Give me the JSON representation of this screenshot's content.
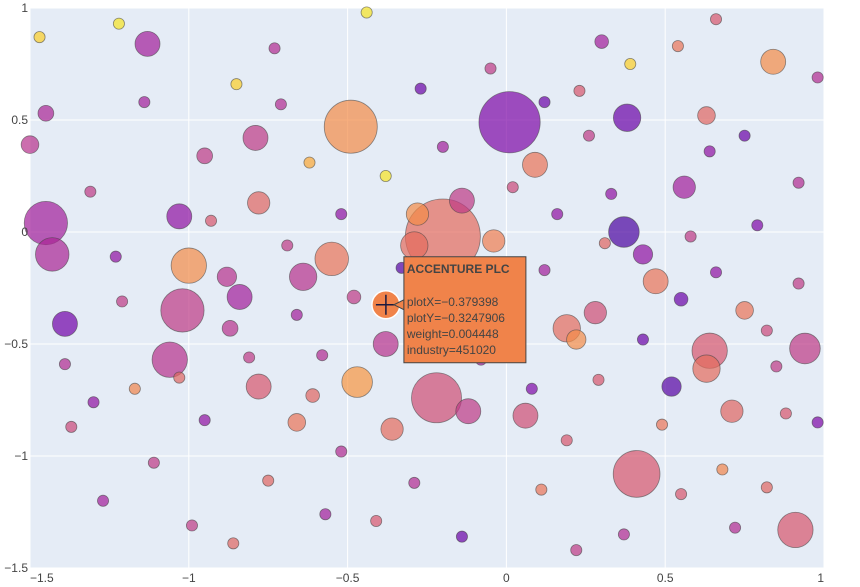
{
  "chart_data": {
    "type": "scatter",
    "title": "",
    "xlabel": "",
    "ylabel": "",
    "xlim": [
      -1.5,
      1.0
    ],
    "ylim": [
      -1.5,
      1.0
    ],
    "x_ticks": [
      -1.5,
      -1,
      -0.5,
      0,
      0.5,
      1
    ],
    "x_tick_labels": [
      "−1.5",
      "−1",
      "−0.5",
      "0",
      "0.5",
      "1"
    ],
    "y_ticks": [
      -1.5,
      -1,
      -0.5,
      0,
      0.5,
      1
    ],
    "y_tick_labels": [
      "−1.5",
      "−1",
      "−0.5",
      "0",
      "0.5",
      "1"
    ],
    "grid": true,
    "background_color": "#e5ecf6",
    "grid_color": "#ffffff",
    "color_scale": [
      "#0d0887",
      "#46039f",
      "#7201a8",
      "#9c179e",
      "#bd3786",
      "#d8576b",
      "#ed7953",
      "#fb9f3a",
      "#fdca26",
      "#f0f921"
    ],
    "marker_opacity": 0.7,
    "marker_outline_color": "#444444",
    "points": [
      {
        "x": 0.01,
        "y": 0.49,
        "weight": 0.06,
        "c": 0.25
      },
      {
        "x": -0.49,
        "y": 0.47,
        "weight": 0.045,
        "c": 0.72
      },
      {
        "x": -0.2,
        "y": -0.02,
        "weight": 0.09,
        "c": 0.62
      },
      {
        "x": -0.22,
        "y": -0.74,
        "weight": 0.04,
        "c": 0.52
      },
      {
        "x": 0.41,
        "y": -1.08,
        "weight": 0.035,
        "c": 0.55
      },
      {
        "x": -1.02,
        "y": -0.35,
        "weight": 0.03,
        "c": 0.45
      },
      {
        "x": -1.45,
        "y": 0.04,
        "weight": 0.03,
        "c": 0.35
      },
      {
        "x": 0.91,
        "y": -1.33,
        "weight": 0.02,
        "c": 0.55
      },
      {
        "x": 0.94,
        "y": -0.52,
        "weight": 0.015,
        "c": 0.45
      },
      {
        "x": 0.64,
        "y": -0.53,
        "weight": 0.02,
        "c": 0.55
      },
      {
        "x": -0.47,
        "y": -0.67,
        "weight": 0.015,
        "c": 0.75
      },
      {
        "x": -1.0,
        "y": -0.15,
        "weight": 0.02,
        "c": 0.72
      },
      {
        "x": -1.06,
        "y": -0.57,
        "weight": 0.02,
        "c": 0.42
      },
      {
        "x": 0.37,
        "y": 0.0,
        "weight": 0.015,
        "c": 0.12
      },
      {
        "x": 0.38,
        "y": 0.51,
        "weight": 0.012,
        "c": 0.2
      },
      {
        "x": -1.43,
        "y": -0.1,
        "weight": 0.018,
        "c": 0.38
      },
      {
        "x": -0.55,
        "y": -0.12,
        "weight": 0.018,
        "c": 0.65
      },
      {
        "x": 0.63,
        "y": -0.61,
        "weight": 0.012,
        "c": 0.62
      },
      {
        "x": 0.84,
        "y": 0.76,
        "weight": 0.01,
        "c": 0.72
      },
      {
        "x": -1.13,
        "y": 0.84,
        "weight": 0.01,
        "c": 0.35
      },
      {
        "x": -1.39,
        "y": -0.41,
        "weight": 0.01,
        "c": 0.22
      },
      {
        "x": -0.79,
        "y": 0.42,
        "weight": 0.01,
        "c": 0.45
      },
      {
        "x": -0.78,
        "y": -0.69,
        "weight": 0.01,
        "c": 0.55
      },
      {
        "x": -0.84,
        "y": -0.29,
        "weight": 0.01,
        "c": 0.35
      },
      {
        "x": 0.47,
        "y": -0.22,
        "weight": 0.01,
        "c": 0.65
      },
      {
        "x": 0.71,
        "y": -0.8,
        "weight": 0.008,
        "c": 0.6
      },
      {
        "x": 0.19,
        "y": -0.43,
        "weight": 0.012,
        "c": 0.62
      },
      {
        "x": -0.38,
        "y": -0.5,
        "weight": 0.01,
        "c": 0.42
      },
      {
        "x": -0.36,
        "y": -0.88,
        "weight": 0.008,
        "c": 0.62
      },
      {
        "x": 0.06,
        "y": -0.82,
        "weight": 0.01,
        "c": 0.52
      },
      {
        "x": -0.12,
        "y": -0.8,
        "weight": 0.01,
        "c": 0.45
      },
      {
        "x": -0.29,
        "y": -0.06,
        "weight": 0.012,
        "c": 0.62
      },
      {
        "x": -0.04,
        "y": -0.04,
        "weight": 0.008,
        "c": 0.68
      },
      {
        "x": -0.64,
        "y": -0.2,
        "weight": 0.012,
        "c": 0.42
      },
      {
        "x": -0.14,
        "y": 0.14,
        "weight": 0.01,
        "c": 0.45
      },
      {
        "x": -1.03,
        "y": 0.07,
        "weight": 0.01,
        "c": 0.3
      },
      {
        "x": 0.09,
        "y": 0.3,
        "weight": 0.01,
        "c": 0.65
      },
      {
        "x": -0.78,
        "y": 0.13,
        "weight": 0.008,
        "c": 0.6
      },
      {
        "x": 0.28,
        "y": -0.36,
        "weight": 0.008,
        "c": 0.52
      },
      {
        "x": 0.56,
        "y": 0.2,
        "weight": 0.008,
        "c": 0.35
      },
      {
        "x": -0.28,
        "y": 0.08,
        "weight": 0.008,
        "c": 0.72
      },
      {
        "x": 0.52,
        "y": -0.69,
        "weight": 0.006,
        "c": 0.15
      },
      {
        "x": -0.88,
        "y": -0.2,
        "weight": 0.006,
        "c": 0.42
      },
      {
        "x": 0.22,
        "y": -0.48,
        "weight": 0.006,
        "c": 0.72
      },
      {
        "x": 0.43,
        "y": -0.1,
        "weight": 0.006,
        "c": 0.3
      },
      {
        "x": 0.75,
        "y": -0.35,
        "weight": 0.005,
        "c": 0.65
      },
      {
        "x": 0.63,
        "y": 0.52,
        "weight": 0.005,
        "c": 0.6
      },
      {
        "x": -0.66,
        "y": -0.85,
        "weight": 0.005,
        "c": 0.65
      },
      {
        "x": -1.5,
        "y": 0.39,
        "weight": 0.005,
        "c": 0.42
      },
      {
        "x": -1.45,
        "y": 0.53,
        "weight": 0.004,
        "c": 0.38
      },
      {
        "x": -0.95,
        "y": 0.34,
        "weight": 0.004,
        "c": 0.45
      },
      {
        "x": -0.87,
        "y": -0.43,
        "weight": 0.004,
        "c": 0.42
      },
      {
        "x": 0.3,
        "y": 0.85,
        "weight": 0.003,
        "c": 0.35
      },
      {
        "x": 0.55,
        "y": -0.3,
        "weight": 0.003,
        "c": 0.2
      },
      {
        "x": -0.61,
        "y": -0.73,
        "weight": 0.003,
        "c": 0.6
      },
      {
        "x": -0.48,
        "y": -0.29,
        "weight": 0.003,
        "c": 0.45
      },
      {
        "x": 0.88,
        "y": -0.81,
        "weight": 0.002,
        "c": 0.55
      },
      {
        "x": -1.39,
        "y": -0.59,
        "weight": 0.002,
        "c": 0.4
      },
      {
        "x": -1.21,
        "y": -0.31,
        "weight": 0.002,
        "c": 0.45
      },
      {
        "x": -0.52,
        "y": -0.98,
        "weight": 0.002,
        "c": 0.4
      },
      {
        "x": 0.08,
        "y": -0.7,
        "weight": 0.002,
        "c": 0.25
      },
      {
        "x": -1.22,
        "y": 0.93,
        "weight": 0.002,
        "c": 0.95
      },
      {
        "x": -1.47,
        "y": 0.87,
        "weight": 0.002,
        "c": 0.9
      },
      {
        "x": -0.73,
        "y": 0.82,
        "weight": 0.002,
        "c": 0.4
      },
      {
        "x": -0.44,
        "y": 0.98,
        "weight": 0.002,
        "c": 0.95
      },
      {
        "x": 0.54,
        "y": 0.83,
        "weight": 0.002,
        "c": 0.65
      },
      {
        "x": 0.23,
        "y": 0.63,
        "weight": 0.002,
        "c": 0.55
      },
      {
        "x": 0.12,
        "y": 0.58,
        "weight": 0.002,
        "c": 0.2
      },
      {
        "x": -0.05,
        "y": 0.73,
        "weight": 0.002,
        "c": 0.45
      },
      {
        "x": 0.39,
        "y": 0.75,
        "weight": 0.002,
        "c": 0.9
      },
      {
        "x": 0.64,
        "y": 0.36,
        "weight": 0.002,
        "c": 0.3
      },
      {
        "x": 0.92,
        "y": 0.22,
        "weight": 0.002,
        "c": 0.4
      },
      {
        "x": 0.79,
        "y": 0.03,
        "weight": 0.002,
        "c": 0.25
      },
      {
        "x": 0.92,
        "y": -0.23,
        "weight": 0.002,
        "c": 0.45
      },
      {
        "x": 0.82,
        "y": -1.14,
        "weight": 0.002,
        "c": 0.6
      },
      {
        "x": 0.68,
        "y": -1.06,
        "weight": 0.002,
        "c": 0.7
      },
      {
        "x": 0.37,
        "y": -1.35,
        "weight": 0.002,
        "c": 0.4
      },
      {
        "x": 0.11,
        "y": -1.15,
        "weight": 0.002,
        "c": 0.65
      },
      {
        "x": -0.14,
        "y": -1.36,
        "weight": 0.002,
        "c": 0.2
      },
      {
        "x": -0.41,
        "y": -1.29,
        "weight": 0.002,
        "c": 0.55
      },
      {
        "x": -0.75,
        "y": -1.11,
        "weight": 0.002,
        "c": 0.6
      },
      {
        "x": -0.99,
        "y": -1.31,
        "weight": 0.002,
        "c": 0.45
      },
      {
        "x": -1.27,
        "y": -1.2,
        "weight": 0.002,
        "c": 0.35
      },
      {
        "x": -1.37,
        "y": -0.87,
        "weight": 0.002,
        "c": 0.5
      },
      {
        "x": -1.17,
        "y": -0.7,
        "weight": 0.002,
        "c": 0.7
      },
      {
        "x": -0.95,
        "y": -0.84,
        "weight": 0.002,
        "c": 0.3
      },
      {
        "x": -0.66,
        "y": -0.37,
        "weight": 0.002,
        "c": 0.35
      },
      {
        "x": -0.33,
        "y": -0.16,
        "weight": 0.002,
        "c": 0.15
      },
      {
        "x": -0.08,
        "y": -0.57,
        "weight": 0.002,
        "c": 0.35
      },
      {
        "x": 0.19,
        "y": -0.93,
        "weight": 0.002,
        "c": 0.55
      },
      {
        "x": 0.43,
        "y": -0.48,
        "weight": 0.002,
        "c": 0.2
      },
      {
        "x": 0.58,
        "y": -0.02,
        "weight": 0.002,
        "c": 0.45
      },
      {
        "x": 0.16,
        "y": 0.08,
        "weight": 0.002,
        "c": 0.3
      },
      {
        "x": -0.38,
        "y": 0.25,
        "weight": 0.002,
        "c": 0.95
      },
      {
        "x": -0.71,
        "y": 0.57,
        "weight": 0.002,
        "c": 0.4
      },
      {
        "x": -0.85,
        "y": 0.66,
        "weight": 0.002,
        "c": 0.9
      },
      {
        "x": -1.14,
        "y": 0.58,
        "weight": 0.002,
        "c": 0.35
      },
      {
        "x": -1.31,
        "y": 0.18,
        "weight": 0.002,
        "c": 0.45
      },
      {
        "x": 0.66,
        "y": 0.95,
        "weight": 0.002,
        "c": 0.55
      },
      {
        "x": 0.98,
        "y": 0.69,
        "weight": 0.002,
        "c": 0.4
      },
      {
        "x": 0.26,
        "y": 0.43,
        "weight": 0.002,
        "c": 0.45
      },
      {
        "x": -0.27,
        "y": 0.64,
        "weight": 0.002,
        "c": 0.2
      },
      {
        "x": -0.62,
        "y": 0.31,
        "weight": 0.002,
        "c": 0.8
      },
      {
        "x": -0.2,
        "y": 0.38,
        "weight": 0.002,
        "c": 0.35
      },
      {
        "x": 0.02,
        "y": 0.2,
        "weight": 0.002,
        "c": 0.5
      },
      {
        "x": 0.33,
        "y": 0.17,
        "weight": 0.002,
        "c": 0.3
      },
      {
        "x": 0.75,
        "y": 0.43,
        "weight": 0.002,
        "c": 0.2
      },
      {
        "x": 0.85,
        "y": -0.6,
        "weight": 0.002,
        "c": 0.45
      },
      {
        "x": 0.49,
        "y": -0.86,
        "weight": 0.002,
        "c": 0.65
      },
      {
        "x": 0.29,
        "y": -0.66,
        "weight": 0.002,
        "c": 0.55
      },
      {
        "x": -0.01,
        "y": -0.43,
        "weight": 0.002,
        "c": 0.3
      },
      {
        "x": -0.18,
        "y": -0.3,
        "weight": 0.002,
        "c": 0.55
      },
      {
        "x": -0.58,
        "y": -0.55,
        "weight": 0.002,
        "c": 0.4
      },
      {
        "x": -0.81,
        "y": -0.56,
        "weight": 0.002,
        "c": 0.45
      },
      {
        "x": -1.03,
        "y": -0.65,
        "weight": 0.002,
        "c": 0.6
      },
      {
        "x": -1.23,
        "y": -0.11,
        "weight": 0.002,
        "c": 0.3
      },
      {
        "x": -0.93,
        "y": 0.05,
        "weight": 0.002,
        "c": 0.55
      },
      {
        "x": -0.52,
        "y": 0.08,
        "weight": 0.002,
        "c": 0.3
      },
      {
        "x": -0.69,
        "y": -0.06,
        "weight": 0.002,
        "c": 0.45
      },
      {
        "x": 0.12,
        "y": -0.17,
        "weight": 0.002,
        "c": 0.35
      },
      {
        "x": 0.31,
        "y": -0.05,
        "weight": 0.002,
        "c": 0.6
      },
      {
        "x": 0.66,
        "y": -0.18,
        "weight": 0.002,
        "c": 0.3
      },
      {
        "x": 0.82,
        "y": -0.44,
        "weight": 0.002,
        "c": 0.5
      },
      {
        "x": 0.98,
        "y": -0.85,
        "weight": 0.002,
        "c": 0.25
      },
      {
        "x": 0.72,
        "y": -1.32,
        "weight": 0.002,
        "c": 0.4
      },
      {
        "x": 0.55,
        "y": -1.17,
        "weight": 0.002,
        "c": 0.55
      },
      {
        "x": 0.22,
        "y": -1.42,
        "weight": 0.002,
        "c": 0.45
      },
      {
        "x": -0.29,
        "y": -1.12,
        "weight": 0.002,
        "c": 0.4
      },
      {
        "x": -0.57,
        "y": -1.26,
        "weight": 0.002,
        "c": 0.35
      },
      {
        "x": -0.86,
        "y": -1.39,
        "weight": 0.002,
        "c": 0.6
      },
      {
        "x": -1.11,
        "y": -1.03,
        "weight": 0.002,
        "c": 0.45
      },
      {
        "x": -1.3,
        "y": -0.76,
        "weight": 0.002,
        "c": 0.3
      }
    ],
    "tooltip": {
      "title": "ACCENTURE PLC",
      "lines": [
        "plotX=−0.379398",
        "plotY=−0.3247906",
        "weight=0.004448",
        "industry=451020"
      ],
      "x": -0.379398,
      "y": -0.3247906,
      "c": 0.62,
      "background_color": "#f0834a",
      "border_color": "#444444"
    }
  }
}
